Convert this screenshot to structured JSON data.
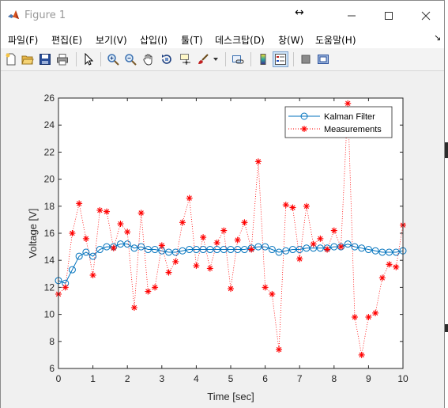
{
  "window": {
    "title": "Figure 1",
    "controls": {
      "minimize": "minimize",
      "maximize": "maximize",
      "close": "close"
    }
  },
  "menu": {
    "items": [
      "파일(F)",
      "편집(E)",
      "보기(V)",
      "삽입(I)",
      "툴(T)",
      "데스크탑(D)",
      "창(W)",
      "도움말(H)"
    ]
  },
  "toolbar": {
    "icons": [
      "new-figure-icon",
      "open-file-icon",
      "save-icon",
      "print-icon",
      "pointer-icon",
      "zoom-in-icon",
      "zoom-out-icon",
      "pan-hand-icon",
      "rotate-3d-icon",
      "data-cursor-icon",
      "brush-icon",
      "link-plot-icon",
      "colorbar-icon",
      "legend-icon",
      "hide-plot-tools-icon",
      "show-plot-tools-icon"
    ]
  },
  "colors": {
    "kalman": "#0072bd",
    "measurements": "#ff0000",
    "axes_bg": "#ffffff",
    "figure_bg": "#f0f0f0"
  },
  "chart_data": {
    "type": "line",
    "title": "",
    "xlabel": "Time [sec]",
    "ylabel": "Voltage [V]",
    "xlim": [
      0,
      10
    ],
    "ylim": [
      6,
      26
    ],
    "xticks": [
      0,
      1,
      2,
      3,
      4,
      5,
      6,
      7,
      8,
      9,
      10
    ],
    "yticks": [
      6,
      8,
      10,
      12,
      14,
      16,
      18,
      20,
      22,
      24,
      26
    ],
    "grid": false,
    "legend_position": "top-right",
    "x": [
      0,
      0.2,
      0.4,
      0.6,
      0.8,
      1.0,
      1.2,
      1.4,
      1.6,
      1.8,
      2.0,
      2.2,
      2.4,
      2.6,
      2.8,
      3.0,
      3.2,
      3.4,
      3.6,
      3.8,
      4.0,
      4.2,
      4.4,
      4.6,
      4.8,
      5.0,
      5.2,
      5.4,
      5.6,
      5.8,
      6.0,
      6.2,
      6.4,
      6.6,
      6.8,
      7.0,
      7.2,
      7.4,
      7.6,
      7.8,
      8.0,
      8.2,
      8.4,
      8.6,
      8.8,
      9.0,
      9.2,
      9.4,
      9.6,
      9.8,
      10.0
    ],
    "series": [
      {
        "name": "Kalman Filter",
        "style": "solid-circle",
        "values": [
          12.5,
          12.3,
          13.3,
          14.3,
          14.6,
          14.3,
          14.8,
          15.0,
          15.0,
          15.2,
          15.2,
          14.9,
          15.0,
          14.8,
          14.8,
          14.7,
          14.6,
          14.6,
          14.7,
          14.8,
          14.8,
          14.8,
          14.8,
          14.8,
          14.8,
          14.8,
          14.8,
          14.8,
          14.9,
          15.0,
          15.0,
          14.8,
          14.6,
          14.7,
          14.8,
          14.8,
          14.9,
          14.9,
          14.9,
          14.9,
          15.0,
          15.0,
          15.2,
          15.0,
          14.9,
          14.8,
          14.7,
          14.6,
          14.6,
          14.6,
          14.7
        ]
      },
      {
        "name": "Measurements",
        "style": "dotted-asterisk",
        "values": [
          11.5,
          12.0,
          16.0,
          18.2,
          15.6,
          12.9,
          17.7,
          17.6,
          14.9,
          16.7,
          16.1,
          10.5,
          17.5,
          11.7,
          12.0,
          15.1,
          13.1,
          13.9,
          16.8,
          18.6,
          13.6,
          15.7,
          13.4,
          15.3,
          16.2,
          11.9,
          15.5,
          16.8,
          14.8,
          21.3,
          12.0,
          11.5,
          7.4,
          18.1,
          17.9,
          14.1,
          18.0,
          15.2,
          15.6,
          14.8,
          16.2,
          15.0,
          25.6,
          9.8,
          7.0,
          9.8,
          10.1,
          12.7,
          13.7,
          13.5,
          16.6
        ]
      }
    ]
  }
}
